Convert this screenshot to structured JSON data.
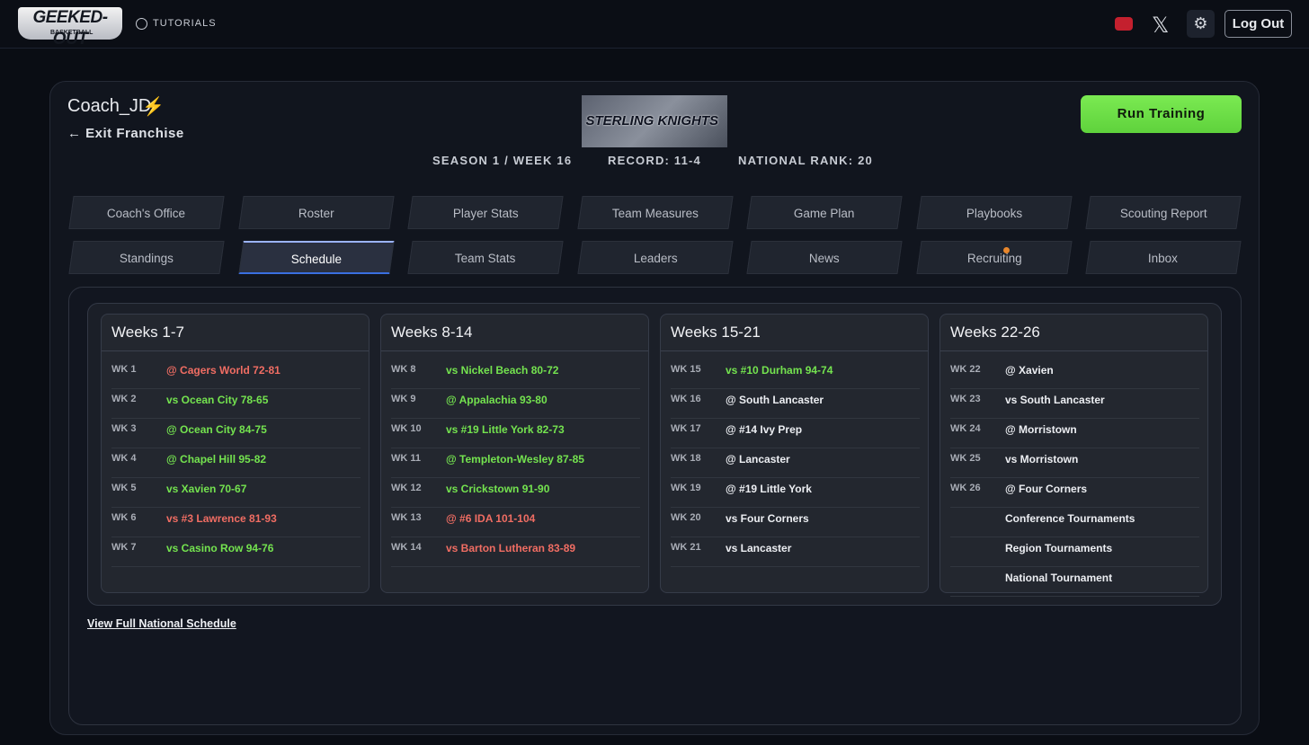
{
  "header": {
    "logo": "GEEKED-OUT",
    "logo_sub": "BASKETBALL",
    "tutorials": "TUTORIALS",
    "logout": "Log Out"
  },
  "franchise": {
    "coach": "Coach_JD",
    "exit": "Exit Franchise",
    "team_logo": "STERLING KNIGHTS",
    "season": "SEASON 1 / WEEK 16",
    "record": "RECORD: 11-4",
    "rank": "NATIONAL RANK: 20",
    "run": "Run Training"
  },
  "tabs": [
    [
      {
        "label": "Coach's Office"
      },
      {
        "label": "Roster"
      },
      {
        "label": "Player Stats"
      },
      {
        "label": "Team Measures"
      },
      {
        "label": "Game Plan"
      },
      {
        "label": "Playbooks"
      },
      {
        "label": "Scouting Report"
      }
    ],
    [
      {
        "label": "Standings"
      },
      {
        "label": "Schedule",
        "selected": true
      },
      {
        "label": "Team Stats"
      },
      {
        "label": "Leaders"
      },
      {
        "label": "News"
      },
      {
        "label": "Recruiting",
        "badge": true
      },
      {
        "label": "Inbox"
      }
    ]
  ],
  "schedule": {
    "columns": [
      {
        "title": "Weeks 1-7",
        "games": [
          {
            "week": "WK 1",
            "game": "@ Cagers World 72-81",
            "result": "loss"
          },
          {
            "week": "WK 2",
            "game": "vs Ocean City 78-65",
            "result": "win"
          },
          {
            "week": "WK 3",
            "game": "@ Ocean City 84-75",
            "result": "win"
          },
          {
            "week": "WK 4",
            "game": "@ Chapel Hill 95-82",
            "result": "win"
          },
          {
            "week": "WK 5",
            "game": "vs Xavien 70-67",
            "result": "win"
          },
          {
            "week": "WK 6",
            "game": "vs #3 Lawrence 81-93",
            "result": "loss"
          },
          {
            "week": "WK 7",
            "game": "vs Casino Row 94-76",
            "result": "win"
          }
        ]
      },
      {
        "title": "Weeks 8-14",
        "games": [
          {
            "week": "WK 8",
            "game": "vs Nickel Beach 80-72",
            "result": "win"
          },
          {
            "week": "WK 9",
            "game": "@ Appalachia 93-80",
            "result": "win"
          },
          {
            "week": "WK 10",
            "game": "vs #19 Little York 82-73",
            "result": "win"
          },
          {
            "week": "WK 11",
            "game": "@ Templeton-Wesley 87-85",
            "result": "win"
          },
          {
            "week": "WK 12",
            "game": "vs Crickstown 91-90",
            "result": "win"
          },
          {
            "week": "WK 13",
            "game": "@ #6 IDA 101-104",
            "result": "loss"
          },
          {
            "week": "WK 14",
            "game": "vs Barton Lutheran 83-89",
            "result": "loss"
          }
        ]
      },
      {
        "title": "Weeks 15-21",
        "games": [
          {
            "week": "WK 15",
            "game": "vs #10 Durham 94-74",
            "result": "win"
          },
          {
            "week": "WK 16",
            "game": "@ South Lancaster"
          },
          {
            "week": "WK 17",
            "game": "@ #14 Ivy Prep"
          },
          {
            "week": "WK 18",
            "game": "@ Lancaster"
          },
          {
            "week": "WK 19",
            "game": "@ #19 Little York"
          },
          {
            "week": "WK 20",
            "game": "vs Four Corners"
          },
          {
            "week": "WK 21",
            "game": "vs Lancaster"
          }
        ]
      },
      {
        "title": "Weeks 22-26",
        "games": [
          {
            "week": "WK 22",
            "game": "@ Xavien"
          },
          {
            "week": "WK 23",
            "game": "vs South Lancaster"
          },
          {
            "week": "WK 24",
            "game": "@ Morristown"
          },
          {
            "week": "WK 25",
            "game": "vs Morristown"
          },
          {
            "week": "WK 26",
            "game": "@ Four Corners"
          },
          {
            "game": "Conference Tournaments"
          },
          {
            "game": "Region Tournaments"
          },
          {
            "game": "National Tournament"
          }
        ]
      }
    ],
    "link": "View Full National Schedule"
  }
}
